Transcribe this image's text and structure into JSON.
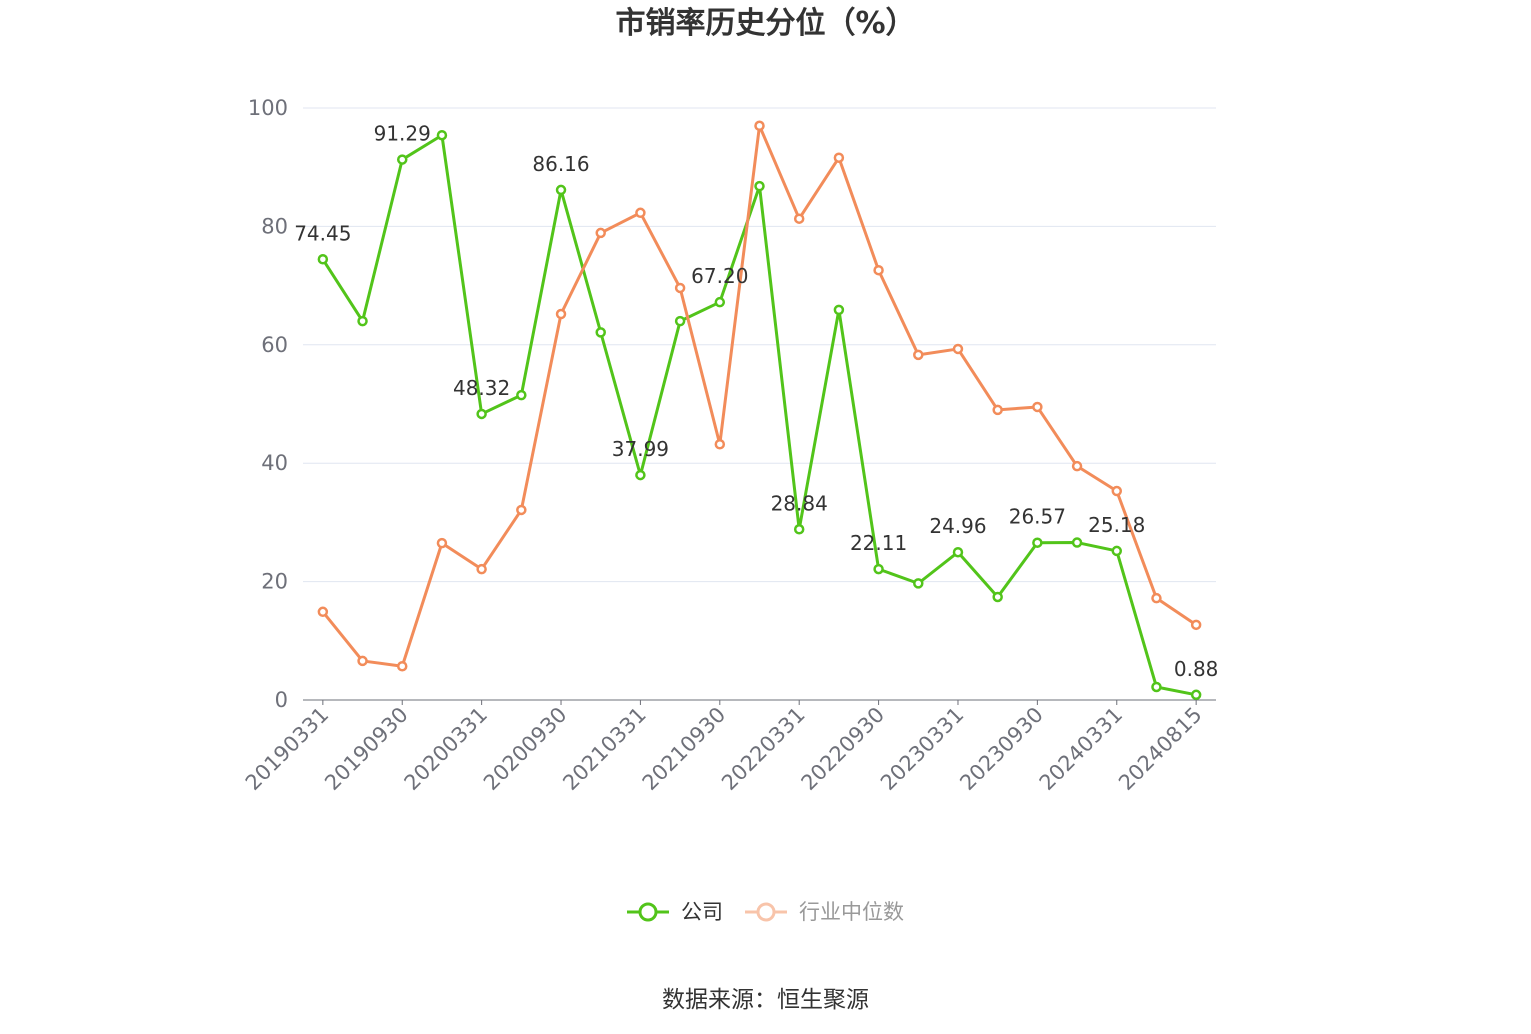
{
  "source": "数据来源：恒生聚源",
  "chart_data": {
    "type": "line",
    "title": "市销率历史分位（%）",
    "xlabel": "",
    "ylabel": "",
    "ylim": [
      0,
      100
    ],
    "y_ticks": [
      0,
      20,
      40,
      60,
      80,
      100
    ],
    "grid": true,
    "legend_position": "bottom",
    "axis_label_color": "#6e7079",
    "axis_line_color": "#6e7079",
    "grid_color": "#e0e6f1",
    "categories": [
      "20190331",
      "",
      "20190930",
      "",
      "20200331",
      "",
      "20200930",
      "",
      "20210331",
      "",
      "20210930",
      "",
      "20220331",
      "",
      "20220930",
      "",
      "20230331",
      "",
      "20230930",
      "",
      "20240331",
      "",
      "20240815"
    ],
    "series": [
      {
        "name": "公司",
        "color": "#52c41a",
        "legend_color": "#52c41a",
        "legend_text_color": "#333333",
        "values": [
          74.45,
          64.0,
          91.29,
          95.4,
          48.32,
          51.5,
          86.16,
          62.1,
          37.99,
          64.0,
          67.2,
          86.8,
          28.84,
          65.9,
          22.11,
          19.7,
          24.96,
          17.4,
          26.57,
          26.6,
          25.18,
          2.2,
          0.88
        ],
        "data_labels": [
          "74.45",
          "",
          "91.29",
          "",
          "48.32",
          "",
          "86.16",
          "",
          "37.99",
          "",
          "67.20",
          "",
          "28.84",
          "",
          "22.11",
          "",
          "24.96",
          "",
          "26.57",
          "",
          "25.18",
          "",
          "0.88"
        ]
      },
      {
        "name": "行业中位数",
        "color": "#f28c5a",
        "legend_color": "#f8c4aa",
        "legend_text_color": "#999999",
        "values": [
          14.9,
          6.6,
          5.7,
          26.5,
          22.1,
          32.1,
          65.2,
          78.9,
          82.3,
          69.6,
          43.2,
          97.0,
          81.3,
          91.6,
          72.6,
          58.3,
          59.3,
          49.0,
          49.5,
          39.5,
          35.3,
          17.2,
          12.7
        ]
      }
    ]
  }
}
